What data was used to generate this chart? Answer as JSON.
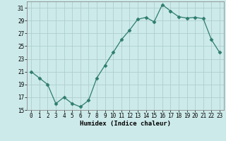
{
  "x": [
    0,
    1,
    2,
    3,
    4,
    5,
    6,
    7,
    8,
    9,
    10,
    11,
    12,
    13,
    14,
    15,
    16,
    17,
    18,
    19,
    20,
    21,
    22,
    23
  ],
  "y": [
    21,
    20,
    19,
    16,
    17,
    16,
    15.5,
    16.5,
    20,
    22,
    24,
    26,
    27.5,
    29.2,
    29.5,
    28.8,
    31.5,
    30.5,
    29.6,
    29.4,
    29.5,
    29.3,
    26,
    24
  ],
  "line_color": "#2e7d6e",
  "marker": "D",
  "marker_size": 2.5,
  "bg_color": "#cdeaea",
  "grid_color": "#aecece",
  "xlabel": "Humidex (Indice chaleur)",
  "ylim": [
    15,
    32
  ],
  "yticks": [
    15,
    17,
    19,
    21,
    23,
    25,
    27,
    29,
    31
  ],
  "xticks": [
    0,
    1,
    2,
    3,
    4,
    5,
    6,
    7,
    8,
    9,
    10,
    11,
    12,
    13,
    14,
    15,
    16,
    17,
    18,
    19,
    20,
    21,
    22,
    23
  ],
  "font_size_label": 6.5,
  "font_size_tick": 5.5
}
